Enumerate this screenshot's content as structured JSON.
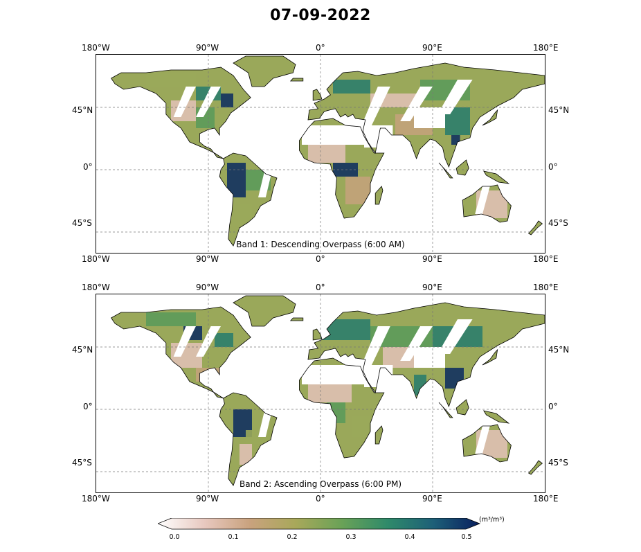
{
  "title": "07-09-2022",
  "lon_ticks": [
    "180°W",
    "90°W",
    "0°",
    "90°E",
    "180°E"
  ],
  "lat_ticks": [
    "45°N",
    "0°",
    "45°S"
  ],
  "panels": [
    {
      "label": "Band 1: Descending Overpass (6:00 AM)"
    },
    {
      "label": "Band 2: Ascending Overpass (6:00 PM)"
    }
  ],
  "colorbar": {
    "ticks": [
      "0.0",
      "0.1",
      "0.2",
      "0.3",
      "0.4",
      "0.5"
    ],
    "unit": "(m³/m³)",
    "colors": [
      "#ffffff",
      "#e8c9c0",
      "#c9a27e",
      "#a8a85a",
      "#6aa257",
      "#2f8a6a",
      "#1d5f78",
      "#0a1f5e"
    ]
  },
  "map_colors": {
    "dry": "#dfc0b2",
    "tan": "#c3a27a",
    "olive": "#9aa85a",
    "green": "#5c9a5a",
    "teal": "#2c7d6c",
    "navy": "#12315f",
    "coast": "#000000",
    "grid": "#777777"
  }
}
